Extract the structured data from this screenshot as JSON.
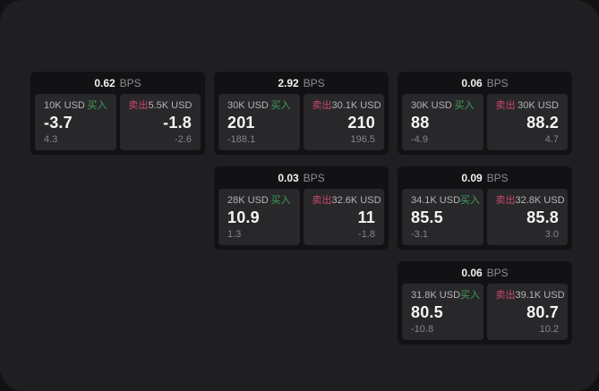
{
  "colors": {
    "page_bg": "#1f1f21",
    "card_bg": "#121214",
    "panel_bg": "#28282b",
    "buy_green": "#3f9e57",
    "sell_red": "#c9486b"
  },
  "labels": {
    "buy": "买入",
    "sell": "卖出",
    "bps_unit": "BPS"
  },
  "cards": [
    {
      "bps": "0.62",
      "buy": {
        "amount": "10K USD",
        "value": "-3.7",
        "sub": "4.3"
      },
      "sell": {
        "amount": "5.5K USD",
        "value": "-1.8",
        "sub": "-2.6"
      }
    },
    {
      "bps": "2.92",
      "buy": {
        "amount": "30K USD",
        "value": "201",
        "sub": "-188.1"
      },
      "sell": {
        "amount": "30.1K USD",
        "value": "210",
        "sub": "196.5"
      }
    },
    {
      "bps": "0.06",
      "buy": {
        "amount": "30K USD",
        "value": "88",
        "sub": "-4.9"
      },
      "sell": {
        "amount": "30K USD",
        "value": "88.2",
        "sub": "4.7"
      }
    },
    {
      "bps": "0.03",
      "buy": {
        "amount": "28K USD",
        "value": "10.9",
        "sub": "1.3"
      },
      "sell": {
        "amount": "32.6K USD",
        "value": "11",
        "sub": "-1.8"
      }
    },
    {
      "bps": "0.09",
      "buy": {
        "amount": "34.1K USD",
        "value": "85.5",
        "sub": "-3.1"
      },
      "sell": {
        "amount": "32.8K USD",
        "value": "85.8",
        "sub": "3.0"
      }
    },
    {
      "bps": "0.06",
      "buy": {
        "amount": "31.8K USD",
        "value": "80.5",
        "sub": "-10.8"
      },
      "sell": {
        "amount": "39.1K USD",
        "value": "80.7",
        "sub": "10.2"
      }
    }
  ]
}
